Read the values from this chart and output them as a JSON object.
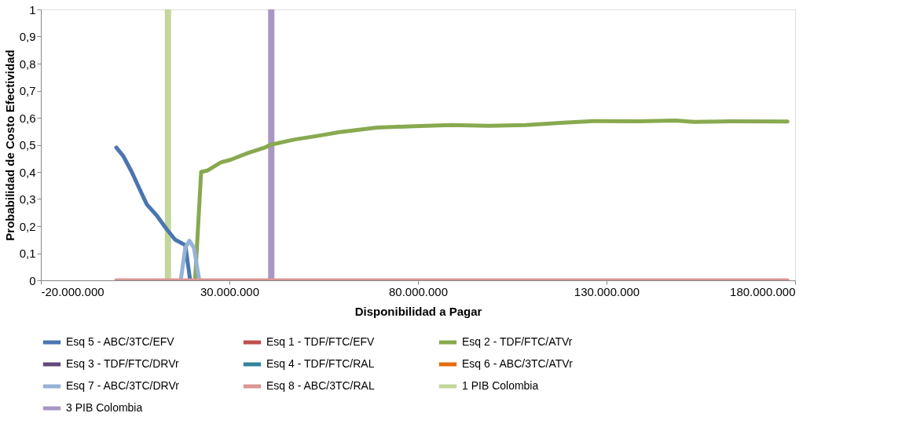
{
  "chart_data": {
    "type": "line",
    "xlabel": "Disponibilidad a Pagar",
    "ylabel": "Probabilidad de Costo Efectividad",
    "xlim": [
      -20000000,
      180000000
    ],
    "xticks": [
      {
        "value": -20000000,
        "label": "-20.000.000"
      },
      {
        "value": 30000000,
        "label": "30.000.000"
      },
      {
        "value": 80000000,
        "label": "80.000.000"
      },
      {
        "value": 130000000,
        "label": "130.000.000"
      },
      {
        "value": 180000000,
        "label": "180.000.000"
      }
    ],
    "ylim": [
      0,
      1
    ],
    "yticks": [
      0,
      {
        "value": 0.1,
        "label": "0,1"
      },
      {
        "value": 0.2,
        "label": "0,2"
      },
      {
        "value": 0.3,
        "label": "0,3"
      },
      {
        "value": 0.4,
        "label": "0,4"
      },
      {
        "value": 0.5,
        "label": "0,5"
      },
      {
        "value": 0.6,
        "label": "0,6"
      },
      {
        "value": 0.7,
        "label": "0,7"
      },
      {
        "value": 0.8,
        "label": "0,8"
      },
      {
        "value": 0.9,
        "label": "0,9"
      },
      1
    ],
    "grid": false,
    "legend": "bottom",
    "marker": "none",
    "line_style": "solid",
    "series": [
      {
        "name": "Esq 5 - ABC/3TC/EFV",
        "color": "#4a76b0",
        "x": [
          0,
          1800000,
          4100000,
          5750000,
          8100000,
          10700000,
          13300000,
          15600000,
          18300000,
          19600000
        ],
        "values": [
          0.49,
          0.46,
          0.4,
          0.35,
          0.28,
          0.24,
          0.19,
          0.15,
          0.13,
          0.0
        ]
      },
      {
        "name": "Esq 1 - TDF/FTC/EFV",
        "color": "#c0504d"
      },
      {
        "name": "Esq 2 - TDF/FTC/ATVr",
        "color": "#88a94f",
        "x": [
          20900000,
          22500000,
          24100000,
          27700000,
          30300000,
          34900000,
          39400000,
          40800000,
          47300000,
          53300000,
          59200000,
          69100000,
          79000000,
          88900000,
          98800000,
          108700000,
          118600000,
          126500000,
          138400000,
          148300000,
          153300000,
          163200000,
          178000000
        ],
        "values": [
          0.0,
          0.4,
          0.405,
          0.435,
          0.445,
          0.47,
          0.49,
          0.5,
          0.52,
          0.533,
          0.547,
          0.564,
          0.569,
          0.573,
          0.57,
          0.573,
          0.582,
          0.588,
          0.587,
          0.59,
          0.585,
          0.587,
          0.586
        ]
      },
      {
        "name": "Esq 3 - TDF/FTC/DRVr",
        "color": "#604a7b"
      },
      {
        "name": "Esq 4 - TDF/FTC/RAL",
        "color": "#31859c"
      },
      {
        "name": "Esq 6 - ABC/3TC/ATVr",
        "color": "#e46c0a"
      },
      {
        "name": "Esq 7 - ABC/3TC/DRVr",
        "color": "#95b3d7",
        "x": [
          17100000,
          18300000,
          19400000,
          20600000,
          22000000
        ],
        "values": [
          0.0,
          0.12,
          0.146,
          0.12,
          0.0
        ]
      },
      {
        "name": "Esq 8 - ABC/3TC/RAL",
        "color": "#d99694",
        "x": [
          0,
          178000000
        ],
        "values": [
          0.0,
          0.0
        ]
      }
    ],
    "ref_lines": [
      {
        "axis": "x",
        "value": 13700000,
        "label": "1 PIB Colombia",
        "color": "#c3d69b"
      },
      {
        "axis": "x",
        "value": 41100000,
        "label": "3 PIB Colombia",
        "color": "#a897c2"
      }
    ]
  }
}
